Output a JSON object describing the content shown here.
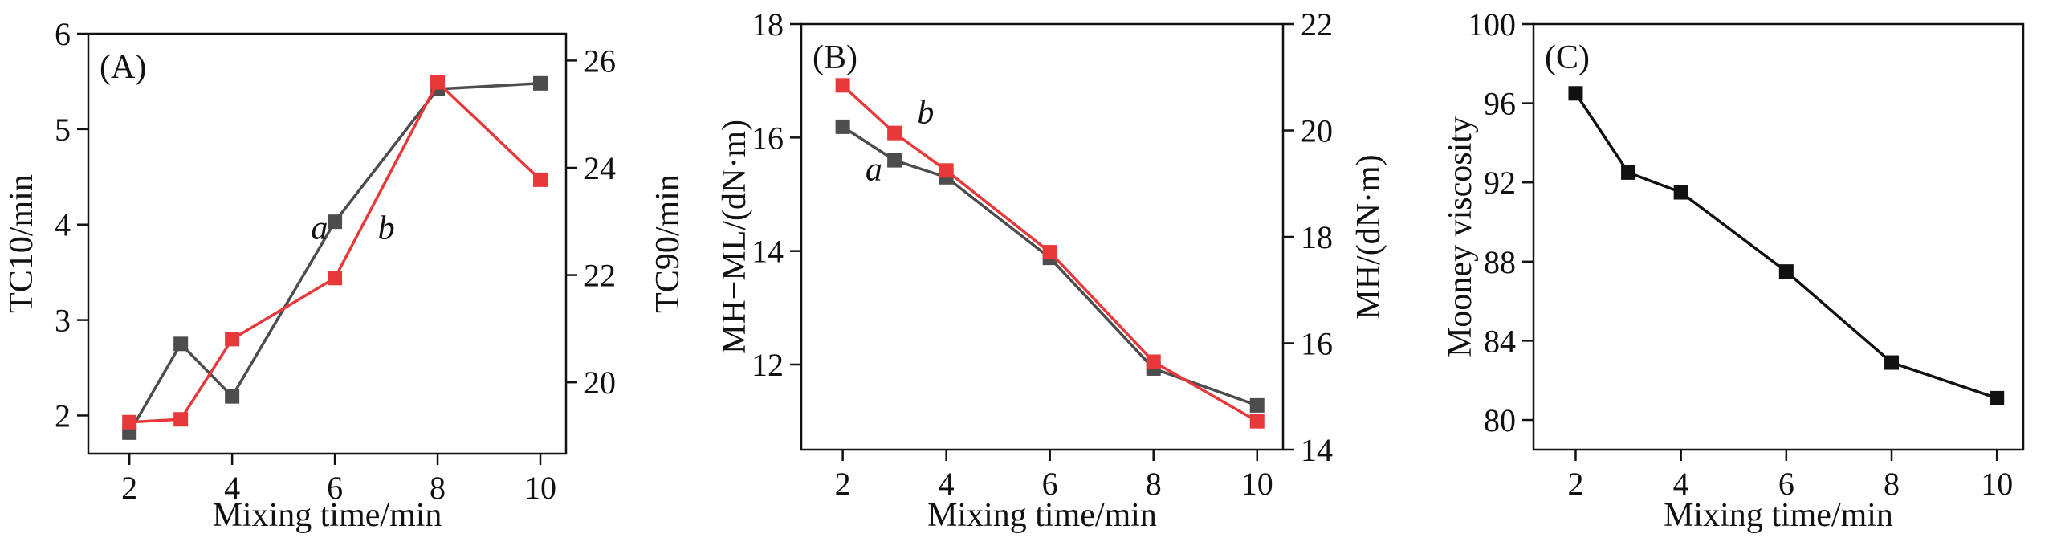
{
  "chart_data": [
    {
      "type": "line",
      "panel_label": "(A)",
      "xlabel": "Mixing time/min",
      "ylabel": "TC10/min",
      "y2label": "TC90/min",
      "x_ticks": [
        2,
        4,
        6,
        8,
        10
      ],
      "xlim": [
        1.2,
        10.5
      ],
      "ylim": [
        1.6,
        6
      ],
      "y_ticks": [
        2,
        3,
        4,
        5,
        6
      ],
      "y2lim": [
        18.67,
        26.5
      ],
      "y2_ticks": [
        20,
        22,
        24,
        26
      ],
      "series": [
        {
          "name": "a",
          "axis": "left",
          "color": "#4d4d4d",
          "x": [
            2,
            3,
            4,
            6,
            8,
            10
          ],
          "y": [
            1.82,
            2.75,
            2.2,
            4.03,
            5.42,
            5.48
          ]
        },
        {
          "name": "b",
          "axis": "left",
          "color": "#e8393a",
          "x": [
            2,
            3,
            4,
            6,
            8,
            10
          ],
          "y": [
            1.93,
            1.96,
            2.8,
            3.44,
            5.49,
            4.47
          ]
        }
      ],
      "annotations": [
        {
          "text": "a",
          "x": 5.7,
          "y": 3.85
        },
        {
          "text": "b",
          "x": 7.0,
          "y": 3.85
        }
      ]
    },
    {
      "type": "line",
      "panel_label": "(B)",
      "xlabel": "Mixing time/min",
      "ylabel": "MH−ML/(dN·m)",
      "y2label": "MH/(dN·m)",
      "x_ticks": [
        2,
        4,
        6,
        8,
        10
      ],
      "xlim": [
        1.2,
        10.5
      ],
      "ylim": [
        10.5,
        18
      ],
      "y_ticks": [
        12,
        14,
        16,
        18
      ],
      "y2lim": [
        14,
        22
      ],
      "y2_ticks": [
        14,
        16,
        18,
        20,
        22
      ],
      "series": [
        {
          "name": "a",
          "axis": "left",
          "color": "#4d4d4d",
          "x": [
            2,
            3,
            4,
            6,
            8,
            10
          ],
          "y": [
            16.19,
            15.6,
            15.3,
            13.88,
            11.93,
            11.28
          ]
        },
        {
          "name": "b",
          "axis": "left",
          "color": "#e8393a",
          "x": [
            2,
            3,
            4,
            6,
            8,
            10
          ],
          "y": [
            16.92,
            16.08,
            15.42,
            13.98,
            12.05,
            11.0
          ]
        }
      ],
      "annotations": [
        {
          "text": "a",
          "x": 2.6,
          "y": 15.25
        },
        {
          "text": "b",
          "x": 3.6,
          "y": 16.25
        }
      ]
    },
    {
      "type": "line",
      "panel_label": "(C)",
      "xlabel": "Mixing time/min",
      "ylabel": "Mooney viscosity",
      "x_ticks": [
        2,
        4,
        6,
        8,
        10
      ],
      "xlim": [
        1.2,
        10.5
      ],
      "ylim": [
        78.5,
        100
      ],
      "y_ticks": [
        80,
        84,
        88,
        92,
        96,
        100
      ],
      "series": [
        {
          "axis": "left",
          "color": "#111111",
          "x": [
            2,
            3,
            4,
            6,
            8,
            10
          ],
          "y": [
            96.5,
            92.5,
            91.5,
            87.5,
            82.9,
            81.1
          ]
        }
      ]
    }
  ]
}
